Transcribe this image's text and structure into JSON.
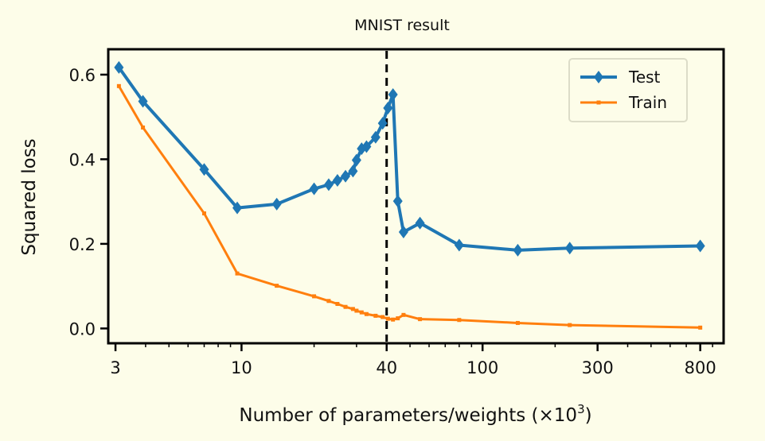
{
  "chart_data": {
    "type": "line",
    "title": "MNIST result",
    "xlabel_main": "Number of parameters/weights (×10",
    "xlabel_sup": "3",
    "xlabel_end": ")",
    "ylabel": "Squared loss",
    "x_scale": "log",
    "xlim": [
      2.8,
      1000
    ],
    "ylim": [
      -0.035,
      0.66
    ],
    "x_ticks": [
      3,
      10,
      40,
      100,
      300,
      800
    ],
    "x_tick_labels": [
      "3",
      "10",
      "40",
      "100",
      "300",
      "800"
    ],
    "y_ticks": [
      0.0,
      0.2,
      0.4,
      0.6
    ],
    "y_tick_labels": [
      "0.0",
      "0.2",
      "0.4",
      "0.6"
    ],
    "vline_x": 40,
    "grid": false,
    "legend_position": "top-right",
    "series": [
      {
        "name": "Test",
        "color": "#1f77b4",
        "marker": "diamond",
        "x": [
          3.1,
          3.9,
          7.0,
          9.6,
          14.0,
          20.0,
          23.0,
          25.0,
          27.0,
          29.0,
          30.0,
          31.5,
          33.0,
          36.0,
          38.5,
          40.5,
          42.5,
          44.5,
          47.0,
          55.0,
          80.0,
          140.0,
          230.0,
          800.0
        ],
        "y": [
          0.617,
          0.537,
          0.376,
          0.285,
          0.294,
          0.33,
          0.34,
          0.35,
          0.36,
          0.372,
          0.398,
          0.425,
          0.43,
          0.452,
          0.485,
          0.521,
          0.553,
          0.301,
          0.228,
          0.249,
          0.197,
          0.185,
          0.19,
          0.195
        ]
      },
      {
        "name": "Train",
        "color": "#ff7f0e",
        "marker": "square",
        "x": [
          3.1,
          3.9,
          7.0,
          9.6,
          14.0,
          20.0,
          23.0,
          25.0,
          27.0,
          29.0,
          30.0,
          31.5,
          33.0,
          36.0,
          38.5,
          40.5,
          42.5,
          44.5,
          47.0,
          55.0,
          80.0,
          140.0,
          230.0,
          800.0
        ],
        "y": [
          0.573,
          0.475,
          0.272,
          0.13,
          0.101,
          0.076,
          0.065,
          0.058,
          0.051,
          0.046,
          0.042,
          0.038,
          0.034,
          0.03,
          0.027,
          0.023,
          0.021,
          0.024,
          0.032,
          0.022,
          0.02,
          0.013,
          0.008,
          0.002
        ]
      }
    ]
  }
}
